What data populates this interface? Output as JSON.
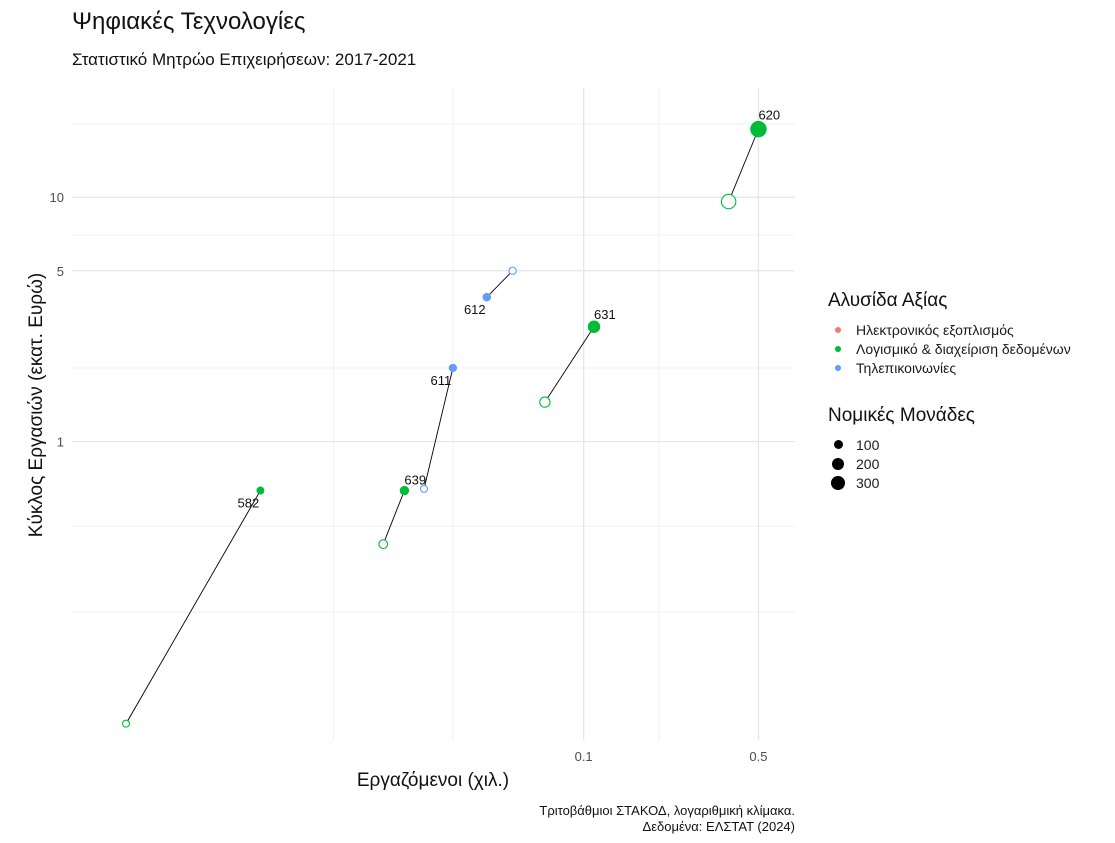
{
  "title": "Ψηφιακές Τεχνολογίες",
  "subtitle": "Στατιστικό Μητρώο Επιχειρήσεων: 2017-2021",
  "caption_line1": "Τριτοβάθμιοι ΣΤΑΚΟΔ, λογαριθμική κλίμακα.",
  "caption_line2": "Δεδομένα: ΕΛΣΤΑΤ (2024)",
  "legend": {
    "color_title": "Αλυσίδα Αξίας",
    "color_items": [
      {
        "label": "Ηλεκτρονικός εξοπλισμός",
        "color": "#F8766D"
      },
      {
        "label": "Λογισμικό & διαχείριση δεδομένων",
        "color": "#00BA38"
      },
      {
        "label": "Τηλεπικοινωνίες",
        "color": "#619CFF"
      }
    ],
    "size_title": "Νομικές Μονάδες",
    "size_items": [
      {
        "label": "100",
        "value": 100
      },
      {
        "label": "200",
        "value": 200
      },
      {
        "label": "300",
        "value": 300
      }
    ]
  },
  "chart_data": {
    "type": "scatter",
    "title": "Ψηφιακές Τεχνολογίες",
    "subtitle": "Στατιστικό Μητρώο Επιχειρήσεων: 2017-2021",
    "xlabel": "Εργαζόμενοι (χιλ.)",
    "ylabel": "Κύκλος Εργασιών (εκατ. Ευρώ)",
    "x_scale": "log",
    "y_scale": "log",
    "xlim": [
      0.0009,
      0.7
    ],
    "ylim": [
      0.06,
      28
    ],
    "x_ticks": [
      0.1,
      0.5
    ],
    "x_tick_labels": [
      "0.1",
      "0.5"
    ],
    "y_ticks": [
      1,
      5,
      10
    ],
    "y_tick_labels": [
      "1",
      "5",
      "10"
    ],
    "x_grid_minor": [
      0.01,
      0.03,
      0.2
    ],
    "y_grid_minor": [
      0.2,
      0.45,
      2,
      7,
      20
    ],
    "grid": true,
    "legend_position": "right",
    "series": [
      {
        "name": "Λογισμικό & διαχείριση δεδομένων",
        "color": "#00BA38"
      },
      {
        "name": "Τηλεπικοινωνίες",
        "color": "#619CFF"
      }
    ],
    "trajectories": [
      {
        "label": "620",
        "series": "Λογισμικό & διαχείριση δεδομένων",
        "start": {
          "x": 0.38,
          "y": 9.6,
          "units": 250
        },
        "end": {
          "x": 0.5,
          "y": 19,
          "units": 300
        }
      },
      {
        "label": "631",
        "series": "Λογισμικό & διαχείριση δεδομένων",
        "start": {
          "x": 0.07,
          "y": 1.45,
          "units": 90
        },
        "end": {
          "x": 0.11,
          "y": 2.95,
          "units": 130
        }
      },
      {
        "label": "639",
        "series": "Λογισμικό & διαχείριση δεδομένων",
        "start": {
          "x": 0.0158,
          "y": 0.38,
          "units": 50
        },
        "end": {
          "x": 0.0192,
          "y": 0.63,
          "units": 45
        }
      },
      {
        "label": "582",
        "series": "Λογισμικό & διαχείριση δεδομένων",
        "start": {
          "x": 0.00148,
          "y": 0.07,
          "units": 20
        },
        "end": {
          "x": 0.0051,
          "y": 0.63,
          "units": 20
        }
      },
      {
        "label": "612",
        "series": "Τηλεπικοινωνίες",
        "start": {
          "x": 0.052,
          "y": 5.0,
          "units": 25
        },
        "end": {
          "x": 0.041,
          "y": 3.9,
          "units": 30
        }
      },
      {
        "label": "611",
        "series": "Τηλεπικοινωνίες",
        "start": {
          "x": 0.023,
          "y": 0.64,
          "units": 20
        },
        "end": {
          "x": 0.03,
          "y": 2.0,
          "units": 25
        }
      }
    ]
  }
}
